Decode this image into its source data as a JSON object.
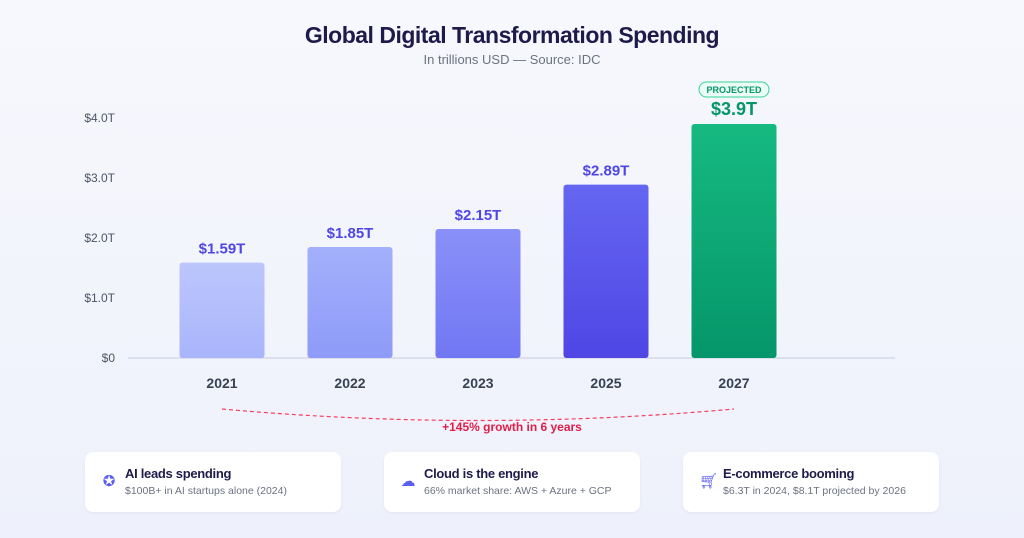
{
  "chart_data": {
    "type": "bar",
    "title": "Global Digital Transformation Spending",
    "subtitle": "In trillions USD — Source: IDC",
    "categories": [
      "2021",
      "2022",
      "2023",
      "2025",
      "2027"
    ],
    "values": [
      1.59,
      1.85,
      2.15,
      2.89,
      3.9
    ],
    "value_labels": [
      "$1.59T",
      "$1.85T",
      "$2.15T",
      "$2.89T",
      "$3.9T"
    ],
    "projected": [
      false,
      false,
      false,
      false,
      true
    ],
    "projected_badge": "PROJECTED",
    "ylim": [
      0,
      4
    ],
    "yticks": [
      0,
      1,
      2,
      3,
      4
    ],
    "ytick_labels": [
      "$0",
      "$1.0T",
      "$2.0T",
      "$3.0T",
      "$4.0T"
    ],
    "annotation": "+145% growth in 6 years",
    "colors": {
      "bars": [
        [
          "#bcc6fc",
          "#a9b5fb"
        ],
        [
          "#a3b0fb",
          "#8e9bf8"
        ],
        [
          "#8a90f8",
          "#7177f3"
        ],
        [
          "#6466f1",
          "#4f46e5"
        ],
        [
          "#16b981",
          "#059669"
        ]
      ],
      "label": "#4f46e5",
      "projected_label": "#059669",
      "annotation": "#e11d48"
    }
  },
  "cards": [
    {
      "icon": "brain-icon",
      "title": "AI leads spending",
      "desc": "$100B+ in AI startups alone (2024)"
    },
    {
      "icon": "cloud-icon",
      "title": "Cloud is the engine",
      "desc": "66% market share: AWS + Azure + GCP"
    },
    {
      "icon": "cart-icon",
      "title": "E-commerce booming",
      "desc": "$6.3T in 2024, $8.1T projected by 2026"
    }
  ]
}
